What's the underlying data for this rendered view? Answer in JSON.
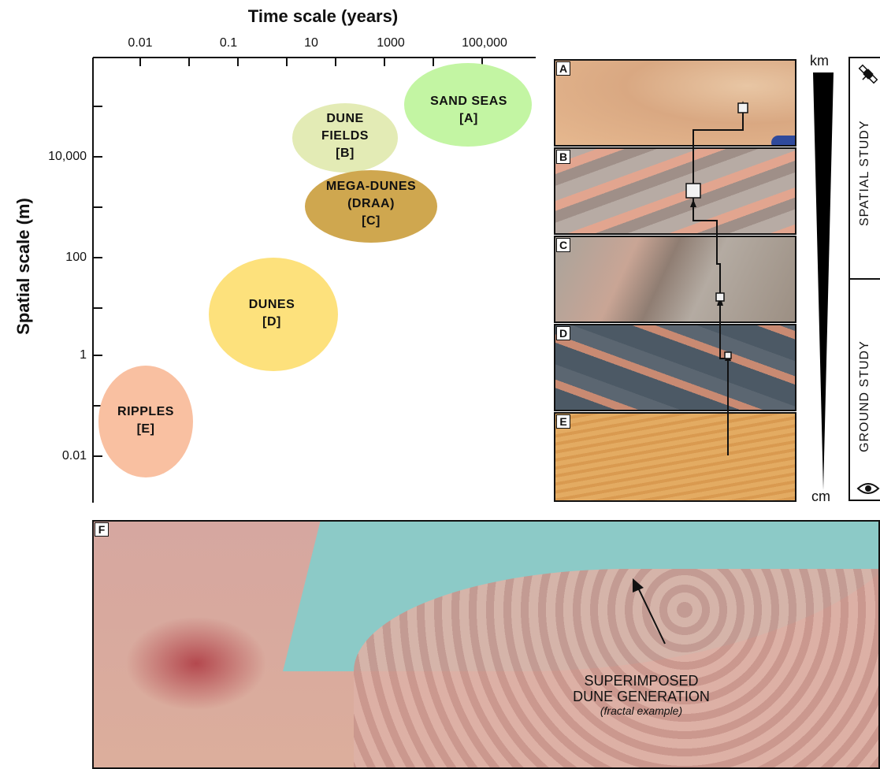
{
  "chart": {
    "x_title": "Time scale (years)",
    "y_title": "Spatial scale (m)",
    "x_ticks": [
      "0.01",
      "0.1",
      "10",
      "1000",
      "100,000"
    ],
    "y_ticks": [
      "10,000",
      "100",
      "1",
      "0.01"
    ]
  },
  "features": [
    {
      "id": "sand-seas",
      "line1": "SAND SEAS",
      "line2": "",
      "line3": "[A]",
      "color": "#c3f5a3"
    },
    {
      "id": "dune-fields",
      "line1": "DUNE",
      "line2": "FIELDS",
      "line3": "[B]",
      "color": "#e3ebb5"
    },
    {
      "id": "mega-dunes",
      "line1": "MEGA-DUNES",
      "line2": "(DRAA)",
      "line3": "[C]",
      "color": "#cfa74f"
    },
    {
      "id": "dunes",
      "line1": "DUNES",
      "line2": "",
      "line3": "[D]",
      "color": "#fde17c"
    },
    {
      "id": "ripples",
      "line1": "RIPPLES",
      "line2": "",
      "line3": "[E]",
      "color": "#f9c0a1"
    }
  ],
  "panels": [
    "A",
    "B",
    "C",
    "D",
    "E"
  ],
  "scale_bar": {
    "top": "km",
    "bottom": "cm"
  },
  "study": {
    "spatial": "SPATIAL STUDY",
    "ground": "GROUND STUDY"
  },
  "icons": {
    "satellite": "satellite-icon",
    "eye": "eye-icon"
  },
  "panel_f": {
    "tag": "F",
    "annotation_line1": "SUPERIMPOSED",
    "annotation_line2": "DUNE GENERATION",
    "annotation_line3": "(fractal example)"
  }
}
